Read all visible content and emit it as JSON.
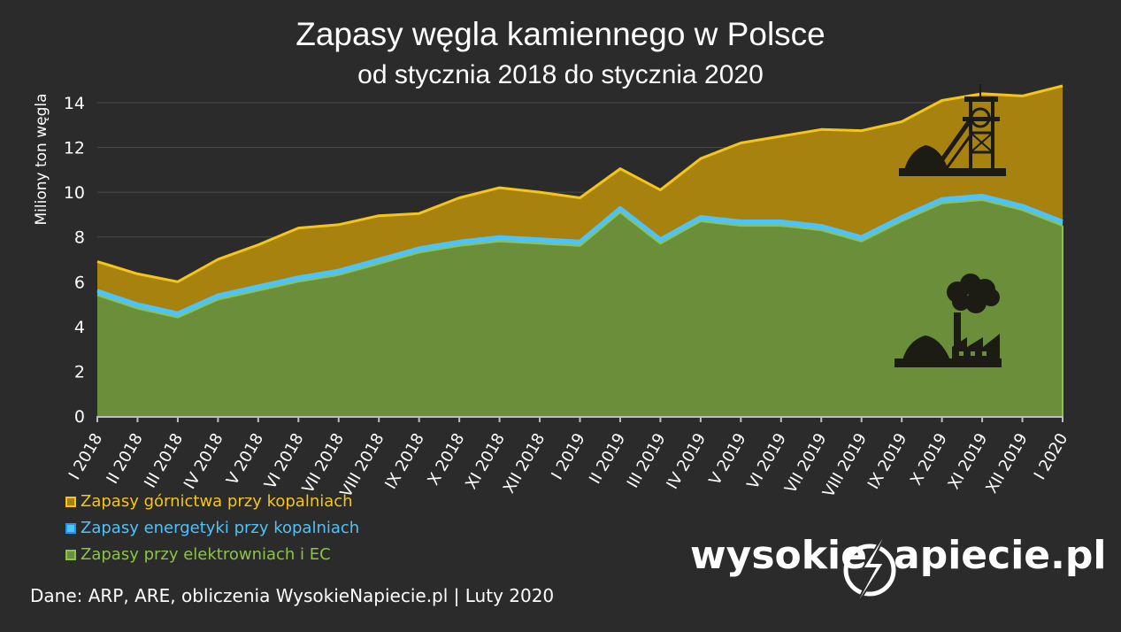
{
  "chart_data": {
    "type": "area",
    "title": "Zapasy węgla kamiennego w Polsce",
    "subtitle": "od stycznia 2018 do stycznia 2020",
    "ylabel": "Miliony ton węgla",
    "xlabel": "",
    "ylim": [
      0,
      14
    ],
    "yticks": [
      0,
      2,
      4,
      6,
      8,
      10,
      12,
      14
    ],
    "stacked": true,
    "grid": true,
    "legend_position": "bottom-left",
    "categories": [
      "I 2018",
      "II 2018",
      "III 2018",
      "IV 2018",
      "V 2018",
      "VI 2018",
      "VII 2018",
      "VIII 2018",
      "IX 2018",
      "X 2018",
      "XI 2018",
      "XII 2018",
      "I 2019",
      "II 2019",
      "III 2019",
      "IV 2019",
      "V 2019",
      "VI 2019",
      "VII 2019",
      "VIII 2019",
      "IX 2019",
      "X 2019",
      "XI 2019",
      "XII 2019",
      "I 2020"
    ],
    "series": [
      {
        "name": "Zapasy przy elektrowniach i EC",
        "color": "#6b8e3b",
        "line_color": "#8bc34a",
        "values": [
          5.4,
          4.8,
          4.4,
          5.2,
          5.6,
          6.0,
          6.3,
          6.8,
          7.3,
          7.6,
          7.8,
          7.7,
          7.6,
          9.1,
          7.7,
          8.7,
          8.5,
          8.5,
          8.3,
          7.8,
          8.7,
          9.5,
          9.65,
          9.2,
          8.5
        ]
      },
      {
        "name": "Zapasy energetyki przy kopalniach",
        "color": "#4fc3f7",
        "line_color": "#4fc3f7",
        "values": [
          0.2,
          0.2,
          0.2,
          0.2,
          0.2,
          0.2,
          0.2,
          0.2,
          0.2,
          0.2,
          0.2,
          0.2,
          0.2,
          0.2,
          0.2,
          0.2,
          0.2,
          0.2,
          0.2,
          0.2,
          0.2,
          0.2,
          0.2,
          0.2,
          0.2
        ]
      },
      {
        "name": "Zapasy górnictwa przy kopalniach",
        "color": "#a8820f",
        "line_color": "#f5c518",
        "values": [
          1.3,
          1.35,
          1.4,
          1.6,
          1.85,
          2.2,
          2.05,
          1.95,
          1.55,
          1.95,
          2.2,
          2.1,
          1.95,
          1.75,
          2.2,
          2.6,
          3.5,
          3.8,
          4.3,
          4.75,
          4.25,
          4.4,
          4.55,
          4.9,
          6.05
        ]
      }
    ]
  },
  "legend": {
    "items": [
      {
        "label": "Zapasy górnictwa przy kopalniach",
        "color": "#f5c518",
        "fill": "#a8820f"
      },
      {
        "label": "Zapasy energetyki przy kopalniach",
        "color": "#4fc3f7",
        "fill": "#4fc3f7"
      },
      {
        "label": "Zapasy przy elektrowniach i EC",
        "color": "#8bc34a",
        "fill": "#6b8e3b"
      }
    ]
  },
  "footer": {
    "source": "Dane: ARP, ARE, obliczenia WysokieNapiecie.pl  |  Luty 2020"
  },
  "logo": {
    "left": "wysokie",
    "right": "apiecie.pl"
  },
  "colors": {
    "background": "#2b2b2b",
    "grid": "#4a4a4a",
    "icon": "#1c1c14"
  },
  "icons": [
    "mine-shaft-icon",
    "coal-pile-icon",
    "power-plant-icon",
    "smoke-cloud-icon",
    "lightning-icon"
  ]
}
